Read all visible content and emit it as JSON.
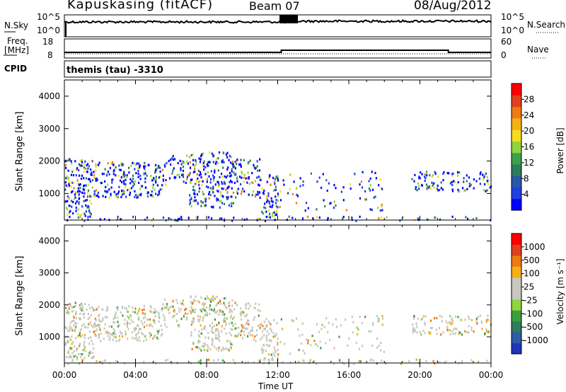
{
  "header": {
    "station": "Kapuskasing (fitACF)",
    "beam": "Beam 07",
    "date": "08/Aug/2012"
  },
  "noise_panel": {
    "left_label": "N.Sky",
    "right_label": "N.Search",
    "left_ticks": [
      "10^5",
      "10^0"
    ],
    "right_ticks": [
      "10^5",
      "10^0"
    ]
  },
  "freq_panel": {
    "left_label_1": "Freq.",
    "left_label_2": "[MHz]",
    "right_label": "Nave",
    "left_ticks": [
      "18",
      "8"
    ],
    "right_ticks": [
      "60",
      "0"
    ]
  },
  "cpid_panel": {
    "label": "CPID",
    "text": "themis (tau) -3310"
  },
  "x_axis": {
    "label": "Time UT",
    "ticks": [
      "00:00",
      "04:00",
      "08:00",
      "12:00",
      "16:00",
      "20:00",
      "00:00"
    ]
  },
  "power_colorbar": {
    "label": "Power [dB]",
    "ticks": [
      "28",
      "24",
      "20",
      "16",
      "12",
      "8",
      "4"
    ],
    "colors": [
      "#0000ff",
      "#1f3fe0",
      "#2a57a6",
      "#2c7d5b",
      "#3da04d",
      "#8fd53f",
      "#f4dc1f",
      "#f5b015",
      "#ef7a12",
      "#e0401a",
      "#ff0000"
    ]
  },
  "velocity_colorbar": {
    "label": "Velocity [m s⁻¹]",
    "ticks": [
      "1000",
      "500",
      "100",
      "25",
      "-25",
      "-100",
      "-500",
      "-1000"
    ],
    "colors": [
      "#2233bb",
      "#2f5aa6",
      "#2c7d5b",
      "#3c9e3c",
      "#8fd53f",
      "#c8c8c0",
      "#c8c8c0",
      "#f5b015",
      "#ef7a12",
      "#e04020",
      "#ff0000"
    ]
  },
  "chart_data": [
    {
      "type": "heatmap",
      "title": "Power",
      "ylabel": "Slant Range [km]",
      "xlabel": "Time UT",
      "xlim": [
        0,
        24
      ],
      "ylim": [
        180,
        4500
      ],
      "yticks": [
        1000,
        2000,
        3000,
        4000
      ],
      "colorbar_range_db": [
        0,
        30
      ]
    },
    {
      "type": "heatmap",
      "title": "Velocity",
      "ylabel": "Slant Range [km]",
      "xlabel": "Time UT",
      "xlim": [
        0,
        24
      ],
      "ylim": [
        180,
        4500
      ],
      "yticks": [
        1000,
        2000,
        3000,
        4000
      ],
      "colorbar_range_ms": [
        -1000,
        1000
      ]
    }
  ]
}
